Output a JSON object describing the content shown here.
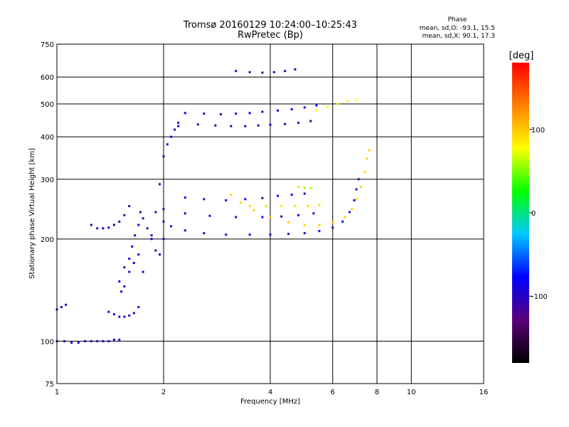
{
  "chart_data": {
    "type": "scatter",
    "title": "Tromsø 20160129 10:24:00–10:25:43",
    "subtitle": "RwPretec (Bp)",
    "xlabel": "Frequency [MHz]",
    "ylabel": "Stationary phase Virtual Height [km]",
    "xscale": "log",
    "yscale": "log",
    "xlim": [
      1,
      16
    ],
    "ylim": [
      75,
      750
    ],
    "x_ticks": [
      1,
      2,
      4,
      6,
      8,
      10,
      16
    ],
    "x_tick_labels": [
      "1",
      "2",
      "4",
      "6",
      "8",
      "10",
      "16"
    ],
    "y_ticks": [
      75,
      100,
      200,
      300,
      400,
      500,
      600,
      750
    ],
    "y_tick_labels": [
      "75",
      "100",
      "200",
      "300",
      "400",
      "500",
      "600",
      "750"
    ],
    "grid": true,
    "stats": {
      "heading": "Phase",
      "line_o": "mean, sd,O: -93.1, 15.5",
      "line_x": "mean, sd,X:  90.1, 17.3"
    },
    "colorbar": {
      "label": "[deg]",
      "min": -180,
      "max": 180,
      "ticks": [
        100,
        0,
        -100
      ],
      "tick_labels": [
        "100",
        "0",
        "-100"
      ],
      "stops": [
        "#000000",
        "#5a007a",
        "#0000ff",
        "#00c8ff",
        "#00ff00",
        "#ffff00",
        "#ff8000",
        "#ff0000"
      ]
    },
    "series": [
      {
        "phase": -97,
        "points": [
          [
            1.0,
            100
          ],
          [
            1.05,
            100
          ],
          [
            1.1,
            99
          ],
          [
            1.15,
            99
          ],
          [
            1.2,
            100
          ],
          [
            1.25,
            100
          ],
          [
            1.3,
            100
          ],
          [
            1.35,
            100
          ],
          [
            1.4,
            100
          ],
          [
            1.45,
            101
          ],
          [
            1.5,
            101
          ]
        ]
      },
      {
        "phase": -97,
        "points": [
          [
            1.0,
            124
          ],
          [
            1.03,
            126
          ],
          [
            1.06,
            128
          ]
        ]
      },
      {
        "phase": -97,
        "points": [
          [
            1.4,
            122
          ],
          [
            1.45,
            120
          ],
          [
            1.5,
            118
          ],
          [
            1.55,
            118
          ],
          [
            1.6,
            119
          ],
          [
            1.65,
            121
          ],
          [
            1.7,
            126
          ]
        ]
      },
      {
        "phase": -97,
        "points": [
          [
            1.55,
            165
          ],
          [
            1.6,
            175
          ],
          [
            1.63,
            190
          ],
          [
            1.66,
            205
          ],
          [
            1.7,
            220
          ],
          [
            1.72,
            240
          ],
          [
            1.75,
            230
          ],
          [
            1.8,
            215
          ],
          [
            1.85,
            200
          ],
          [
            1.9,
            185
          ],
          [
            1.95,
            180
          ],
          [
            2.0,
            200
          ]
        ]
      },
      {
        "phase": -97,
        "points": [
          [
            1.25,
            220
          ],
          [
            1.3,
            215
          ],
          [
            1.35,
            215
          ],
          [
            1.4,
            216
          ],
          [
            1.45,
            220
          ],
          [
            1.5,
            225
          ],
          [
            1.55,
            235
          ],
          [
            1.6,
            250
          ]
        ]
      },
      {
        "phase": -97,
        "points": [
          [
            1.5,
            150
          ],
          [
            1.52,
            140
          ],
          [
            1.55,
            145
          ],
          [
            1.6,
            160
          ],
          [
            1.65,
            170
          ],
          [
            1.7,
            180
          ],
          [
            1.75,
            160
          ]
        ]
      },
      {
        "phase": -97,
        "points": [
          [
            1.85,
            205
          ],
          [
            1.9,
            240
          ],
          [
            1.95,
            290
          ],
          [
            2.0,
            350
          ],
          [
            2.05,
            380
          ],
          [
            2.1,
            400
          ],
          [
            2.15,
            420
          ],
          [
            2.2,
            430
          ]
        ]
      },
      {
        "phase": -97,
        "points": [
          [
            2.0,
            225
          ],
          [
            2.1,
            218
          ],
          [
            2.3,
            212
          ],
          [
            2.6,
            208
          ],
          [
            3.0,
            206
          ],
          [
            3.5,
            206
          ],
          [
            4.0,
            206
          ],
          [
            4.5,
            207
          ],
          [
            5.0,
            208
          ],
          [
            5.5,
            211
          ],
          [
            6.0,
            216
          ],
          [
            6.4,
            225
          ],
          [
            6.7,
            240
          ],
          [
            6.9,
            260
          ],
          [
            7.0,
            280
          ],
          [
            7.1,
            300
          ]
        ]
      },
      {
        "phase": -97,
        "points": [
          [
            2.0,
            245
          ],
          [
            2.3,
            238
          ],
          [
            2.7,
            234
          ],
          [
            3.2,
            232
          ],
          [
            3.8,
            232
          ],
          [
            4.3,
            233
          ],
          [
            4.8,
            235
          ],
          [
            5.3,
            238
          ]
        ]
      },
      {
        "phase": -90,
        "points": [
          [
            2.3,
            265
          ],
          [
            2.6,
            262
          ],
          [
            3.0,
            260
          ],
          [
            3.4,
            262
          ],
          [
            3.8,
            264
          ],
          [
            4.2,
            268
          ],
          [
            4.6,
            270
          ],
          [
            5.0,
            272
          ]
        ]
      },
      {
        "phase": -100,
        "points": [
          [
            2.2,
            440
          ],
          [
            2.5,
            435
          ],
          [
            2.8,
            432
          ],
          [
            3.1,
            430
          ],
          [
            3.4,
            430
          ],
          [
            3.7,
            432
          ],
          [
            4.0,
            434
          ],
          [
            4.4,
            436
          ],
          [
            4.8,
            440
          ],
          [
            5.2,
            445
          ]
        ]
      },
      {
        "phase": -85,
        "points": [
          [
            2.3,
            470
          ],
          [
            2.6,
            468
          ],
          [
            2.9,
            466
          ],
          [
            3.2,
            468
          ],
          [
            3.5,
            470
          ],
          [
            3.8,
            474
          ],
          [
            4.2,
            478
          ],
          [
            4.6,
            482
          ],
          [
            5.0,
            488
          ],
          [
            5.4,
            495
          ]
        ]
      },
      {
        "phase": -97,
        "points": [
          [
            3.2,
            625
          ],
          [
            3.5,
            620
          ],
          [
            3.8,
            618
          ],
          [
            4.1,
            620
          ],
          [
            4.4,
            625
          ],
          [
            4.7,
            632
          ]
        ]
      },
      {
        "phase": 95,
        "points": [
          [
            3.1,
            270
          ],
          [
            3.3,
            256
          ],
          [
            3.6,
            243
          ],
          [
            4.0,
            232
          ],
          [
            4.5,
            224
          ],
          [
            5.0,
            220
          ],
          [
            5.5,
            220
          ],
          [
            6.0,
            224
          ],
          [
            6.5,
            232
          ],
          [
            6.8,
            245
          ],
          [
            7.0,
            262
          ],
          [
            7.2,
            285
          ],
          [
            7.4,
            315
          ],
          [
            7.5,
            345
          ],
          [
            7.6,
            365
          ]
        ]
      },
      {
        "phase": 90,
        "points": [
          [
            3.5,
            250
          ],
          [
            3.9,
            250
          ],
          [
            4.3,
            250
          ],
          [
            4.7,
            250
          ],
          [
            5.1,
            250
          ],
          [
            5.5,
            252
          ]
        ]
      },
      {
        "phase": 80,
        "points": [
          [
            5.4,
            480
          ],
          [
            5.8,
            490
          ],
          [
            6.2,
            500
          ],
          [
            6.6,
            510
          ],
          [
            7.0,
            515
          ]
        ]
      },
      {
        "phase": 60,
        "points": [
          [
            4.8,
            285
          ],
          [
            5.0,
            283
          ],
          [
            5.2,
            282
          ]
        ]
      }
    ]
  }
}
